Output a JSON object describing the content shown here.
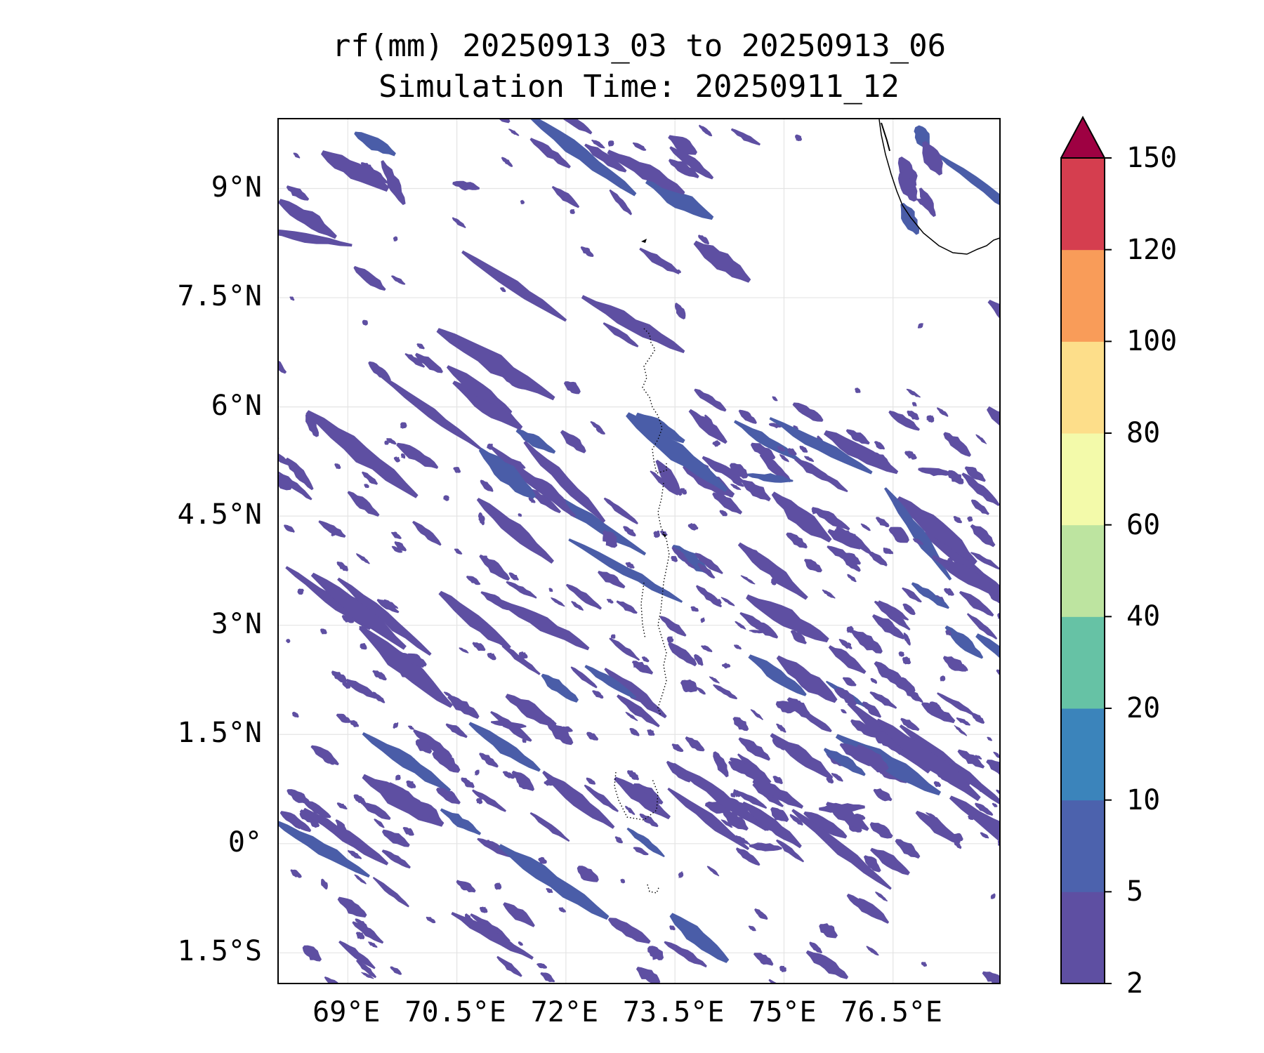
{
  "title": {
    "line1": "rf(mm) 20250913_03 to 20250913_06",
    "line2": "Simulation Time: 20250911_12"
  },
  "map": {
    "projection": "PlateCarree",
    "lon_range": [
      68.05,
      78.0
    ],
    "lat_range": [
      -1.95,
      9.95
    ],
    "gridlines": true,
    "lat_ticks": [
      {
        "value": 9,
        "label": "9°N"
      },
      {
        "value": 7.5,
        "label": "7.5°N"
      },
      {
        "value": 6,
        "label": "6°N"
      },
      {
        "value": 4.5,
        "label": "4.5°N"
      },
      {
        "value": 3,
        "label": "3°N"
      },
      {
        "value": 1.5,
        "label": "1.5°N"
      },
      {
        "value": 0,
        "label": "0°"
      },
      {
        "value": -1.5,
        "label": "1.5°S"
      }
    ],
    "lon_ticks": [
      {
        "value": 69,
        "label": "69°E"
      },
      {
        "value": 70.5,
        "label": "70.5°E"
      },
      {
        "value": 72,
        "label": "72°E"
      },
      {
        "value": 73.5,
        "label": "73.5°E"
      },
      {
        "value": 75,
        "label": "75°E"
      },
      {
        "value": 76.5,
        "label": "76.5°E"
      }
    ],
    "rain_color": "#5e4fa2",
    "rain_color_dense": "#4a5da8",
    "coast_color": "#000000"
  },
  "colorbar": {
    "extend": "max",
    "levels": [
      2,
      5,
      10,
      20,
      40,
      60,
      80,
      100,
      120,
      150
    ],
    "colors": [
      "#5e4fa2",
      "#4c62ad",
      "#3b84bb",
      "#66c2a5",
      "#bde4a0",
      "#f3faaa",
      "#fdde8a",
      "#f99c59",
      "#d53e4f"
    ],
    "over_color": "#9e0142",
    "tick_labels": [
      "2",
      "5",
      "10",
      "20",
      "40",
      "60",
      "80",
      "100",
      "120",
      "150"
    ]
  }
}
